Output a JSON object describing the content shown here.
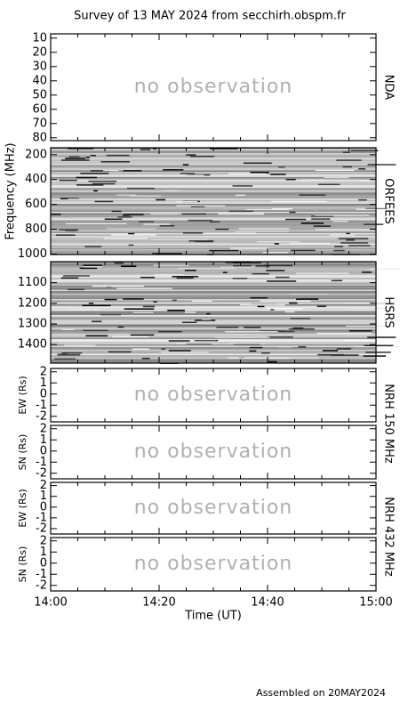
{
  "title": "Survey of 13 MAY 2024 from secchirh.obspm.fr",
  "footer": "Assembled on 20MAY2024",
  "x_axis": {
    "label": "Time (UT)",
    "ticks": [
      "14:00",
      "14:20",
      "14:40",
      "15:00"
    ]
  },
  "frequency_axis_label": "Frequency (MHz)",
  "panels": [
    {
      "instrument": "NDA",
      "status": "no observation",
      "ylim": [
        82,
        7
      ],
      "yticks": [
        10,
        20,
        30,
        40,
        50,
        60,
        70,
        80
      ]
    },
    {
      "instrument": "ORFEES",
      "ylim": [
        1004,
        144
      ],
      "yticks": [
        200,
        400,
        600,
        800,
        1000
      ]
    },
    {
      "instrument": "HSRS",
      "ylim": [
        1490,
        998
      ],
      "yticks": [
        1100,
        1200,
        1300,
        1400
      ]
    },
    {
      "ylabel": "EW (Rs)",
      "status": "no observation",
      "ylim": [
        -2.5,
        2.3
      ],
      "yticks": [
        2,
        1,
        0,
        -1,
        -2
      ]
    },
    {
      "ylabel": "SN (Rs)",
      "status": "no observation",
      "ylim": [
        -2.5,
        2.3
      ],
      "yticks": [
        2,
        1,
        0,
        -1,
        -2
      ]
    },
    {
      "ylabel": "EW (Rs)",
      "status": "no observation",
      "ylim": [
        -2.5,
        2.3
      ],
      "yticks": [
        2,
        1,
        0,
        -1,
        -2
      ]
    },
    {
      "ylabel": "SN (Rs)",
      "status": "no observation",
      "ylim": [
        -2.5,
        2.3
      ],
      "yticks": [
        2,
        1,
        0,
        -1,
        -2
      ]
    }
  ],
  "nrh_labels": [
    "NRH 150 MHz",
    "NRH 432 MHz"
  ]
}
